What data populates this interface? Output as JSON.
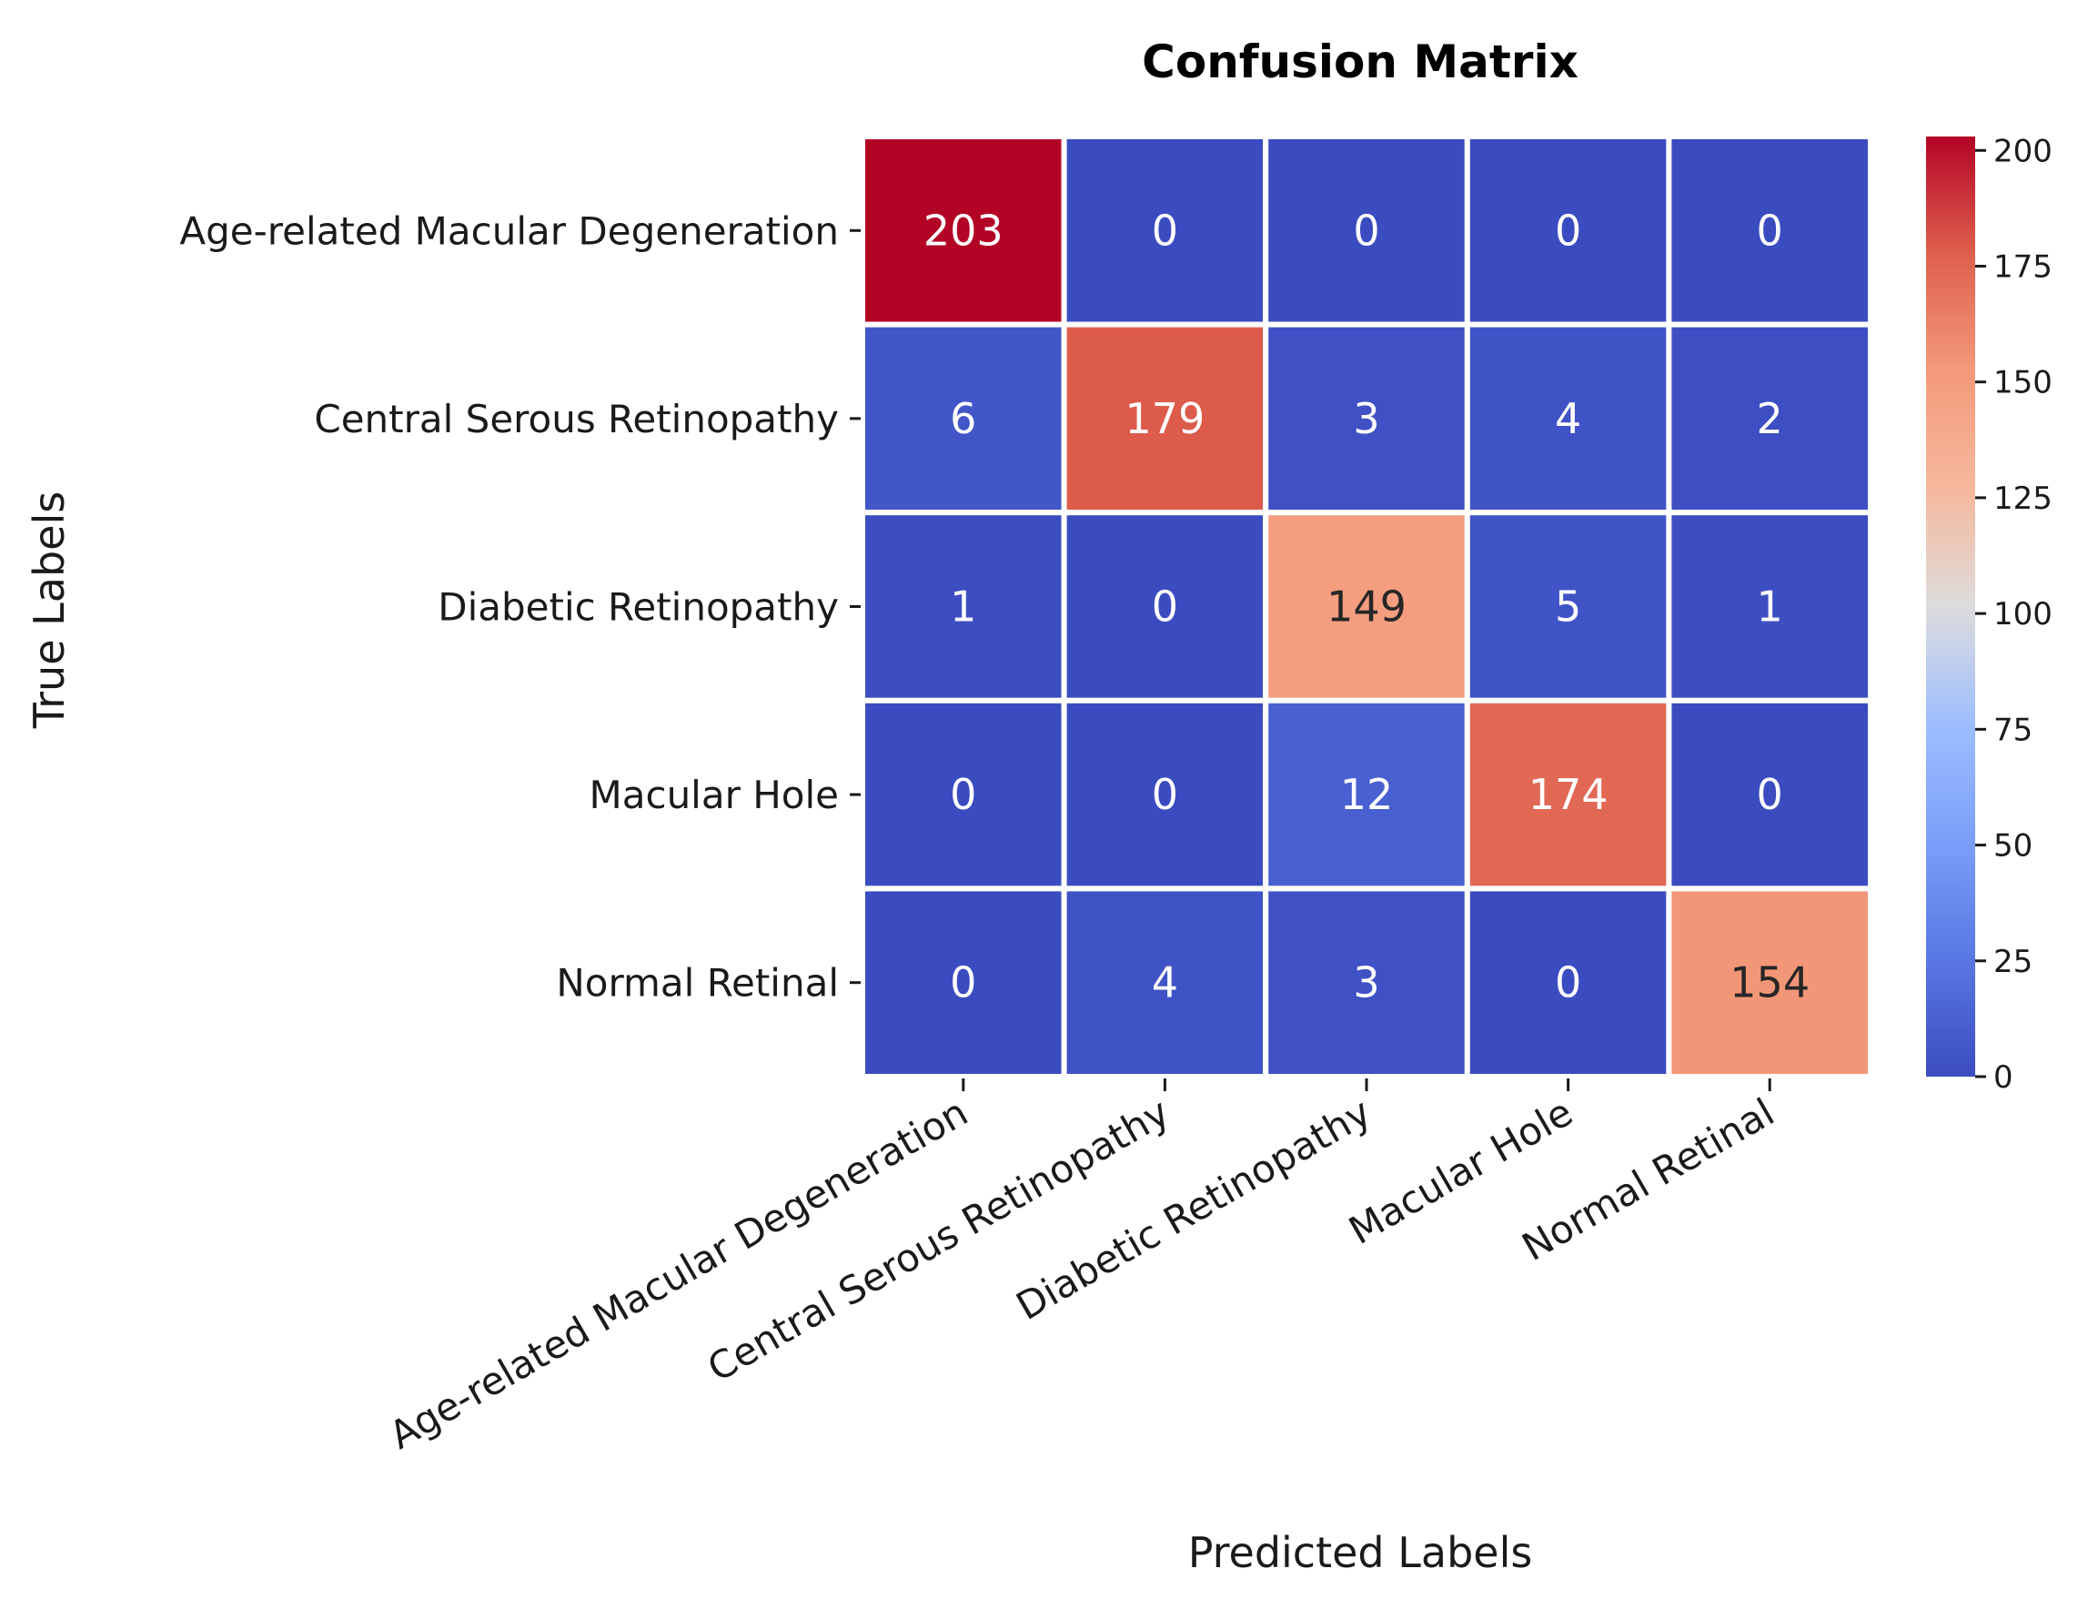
{
  "chart_data": {
    "type": "heatmap",
    "title": "Confusion Matrix",
    "xlabel": "Predicted Labels",
    "ylabel": "True Labels",
    "x_categories": [
      "Age-related Macular Degeneration",
      "Central Serous Retinopathy",
      "Diabetic Retinopathy",
      "Macular Hole",
      "Normal Retinal"
    ],
    "y_categories": [
      "Age-related Macular Degeneration",
      "Central Serous Retinopathy",
      "Diabetic Retinopathy",
      "Macular Hole",
      "Normal Retinal"
    ],
    "values": [
      [
        203,
        0,
        0,
        0,
        0
      ],
      [
        6,
        179,
        3,
        4,
        2
      ],
      [
        1,
        0,
        149,
        5,
        1
      ],
      [
        0,
        0,
        12,
        174,
        0
      ],
      [
        0,
        4,
        3,
        0,
        154
      ]
    ],
    "colormap": "coolwarm",
    "vmin": 0,
    "vmax": 203,
    "colorbar_ticks": [
      0,
      25,
      50,
      75,
      100,
      125,
      150,
      175,
      200
    ],
    "cell_border_color": "#ffffff"
  }
}
